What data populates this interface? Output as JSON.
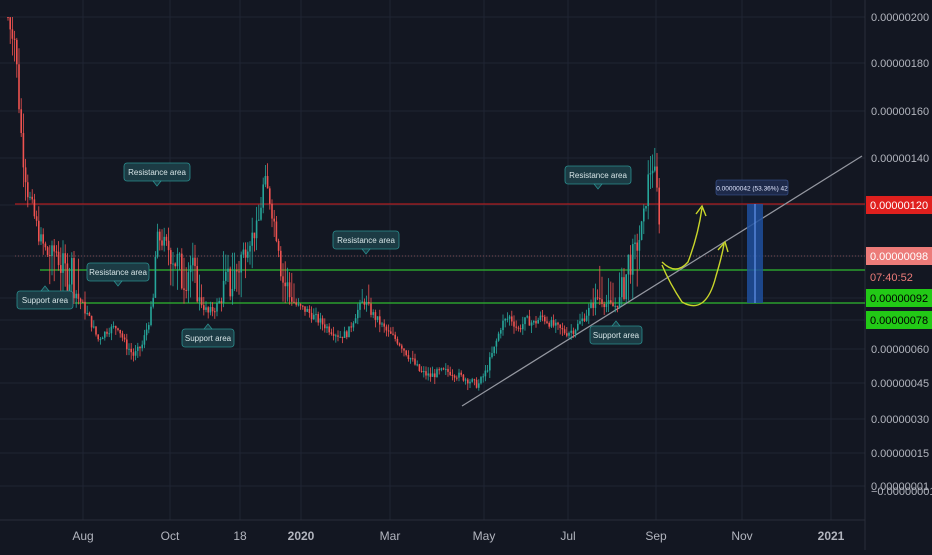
{
  "colors": {
    "background": "#131722",
    "grid": "#1f2433",
    "axis_text": "#b2b5be",
    "up": "#26a69a",
    "down": "#ef5350",
    "resistance_line": "#d11c1c",
    "support_line": "#2fb82f",
    "trend_line": "#9598a1",
    "callout_bg": "#1c3b44",
    "callout_border": "#2a8f8f",
    "callout_text": "#d6e4e6",
    "arrow": "#c9d62a",
    "measure_fill": "#1e4f9c",
    "label_red": "#e0201e",
    "label_salmon": "#ec7b79",
    "label_green": "#22c916"
  },
  "chart_data": {
    "type": "candlestick",
    "y_axis": {
      "ticks": [
        "0.00000200",
        "0.00000180",
        "0.00000160",
        "0.00000140",
        "0.00000120",
        "0.00000098",
        "0.00000092",
        "0.00000078",
        "0.00000060",
        "0.00000045",
        "0.00000030",
        "0.00000015",
        "0.00000001",
        "−0.00000001"
      ]
    },
    "x_axis": {
      "ticks": [
        "Aug",
        "Oct",
        "18",
        "2020",
        "Mar",
        "May",
        "Jul",
        "Sep",
        "Nov",
        "2021"
      ]
    },
    "price_labels": {
      "resistance": "0.00000120",
      "last_price": "0.00000098",
      "countdown": "07:40:52",
      "support_upper": "0.00000092",
      "support_lower": "0.00000078"
    },
    "horizontal_levels": [
      {
        "name": "resistance",
        "value": 1.2e-06
      },
      {
        "name": "support-upper",
        "value": 9.2e-07
      },
      {
        "name": "support-lower",
        "value": 7.8e-07
      }
    ],
    "annotations": [
      {
        "kind": "resistance",
        "text": "Resistance area",
        "x": "Oct"
      },
      {
        "kind": "resistance",
        "text": "Resistance area",
        "x": "Mar"
      },
      {
        "kind": "resistance",
        "text": "Resistance area",
        "x": "Jul"
      },
      {
        "kind": "resistance",
        "text": "Resistance area",
        "x": "Aug"
      },
      {
        "kind": "support",
        "text": "Support area",
        "x": "Aug"
      },
      {
        "kind": "support",
        "text": "Support area",
        "x": "Oct"
      },
      {
        "kind": "support",
        "text": "Support area",
        "x": "Jul"
      }
    ],
    "measurement": {
      "text": "0.00000042 (53.36%) 42"
    }
  }
}
